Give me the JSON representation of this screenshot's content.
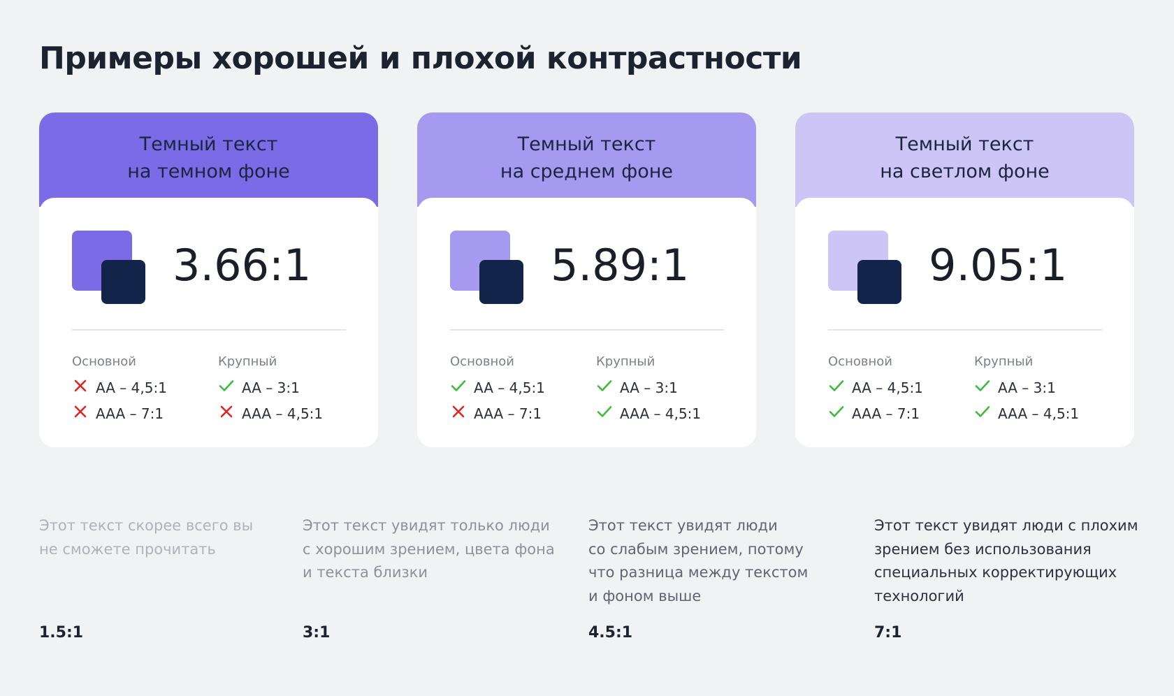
{
  "title": "Примеры хорошей и плохой контрастности",
  "cards": [
    {
      "header": [
        "Темный текст",
        "на темном фоне"
      ],
      "color": "#7b6be6",
      "ratio": "3.66:1",
      "columns": [
        {
          "label": "Основной",
          "items": [
            {
              "text": "AA – 4,5:1",
              "pass": false
            },
            {
              "text": "AAA – 7:1",
              "pass": false
            }
          ]
        },
        {
          "label": "Крупный",
          "items": [
            {
              "text": "AA – 3:1",
              "pass": true
            },
            {
              "text": "AAA – 4,5:1",
              "pass": false
            }
          ]
        }
      ]
    },
    {
      "header": [
        "Темный текст",
        "на среднем фоне"
      ],
      "color": "#a699f0",
      "ratio": "5.89:1",
      "columns": [
        {
          "label": "Основной",
          "items": [
            {
              "text": "AA – 4,5:1",
              "pass": true
            },
            {
              "text": "AAA – 7:1",
              "pass": false
            }
          ]
        },
        {
          "label": "Крупный",
          "items": [
            {
              "text": "AA – 3:1",
              "pass": true
            },
            {
              "text": "AAA – 4,5:1",
              "pass": true
            }
          ]
        }
      ]
    },
    {
      "header": [
        "Темный текст",
        "на светлом фоне"
      ],
      "color": "#cdc5f6",
      "ratio": "9.05:1",
      "columns": [
        {
          "label": "Основной",
          "items": [
            {
              "text": "AA – 4,5:1",
              "pass": true
            },
            {
              "text": "AAA – 7:1",
              "pass": true
            }
          ]
        },
        {
          "label": "Крупный",
          "items": [
            {
              "text": "AA – 3:1",
              "pass": true
            },
            {
              "text": "AAA – 4,5:1",
              "pass": true
            }
          ]
        }
      ]
    }
  ],
  "notes": [
    {
      "lines": [
        "Этот текст скорее всего вы",
        "не сможете прочитать"
      ],
      "color": "#aeb2ba",
      "ratio": "1.5:1"
    },
    {
      "lines": [
        "Этот текст увидят только люди",
        "с хорошим зрением, цвета фона",
        "и текста близки"
      ],
      "color": "#8c919b",
      "ratio": "3:1"
    },
    {
      "lines": [
        "Этот текст увидят люди",
        "со слабым зрением, потому",
        "что разница между текстом",
        "и фоном выше"
      ],
      "color": "#5f6571",
      "ratio": "4.5:1"
    },
    {
      "lines": [
        "Этот текст увидят люди с плохим",
        "зрением без использования",
        "специальных корректирующих",
        "технологий"
      ],
      "color": "#2b313d",
      "ratio": "7:1"
    }
  ]
}
